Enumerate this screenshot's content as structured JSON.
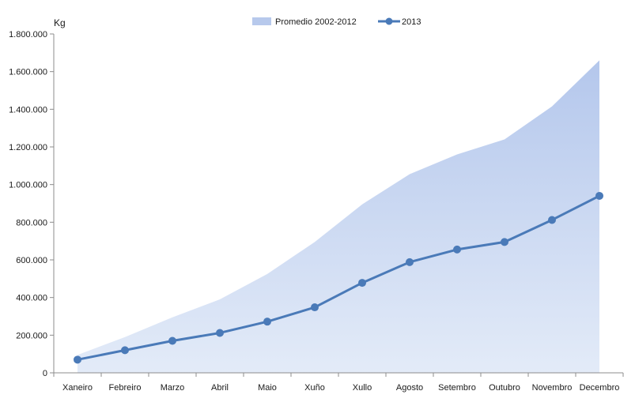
{
  "chart_data": {
    "type": "line",
    "unit_label": "Kg",
    "categories": [
      "Xaneiro",
      "Febreiro",
      "Marzo",
      "Abril",
      "Maio",
      "Xuño",
      "Xullo",
      "Agosto",
      "Setembro",
      "Outubro",
      "Novembro",
      "Decembro"
    ],
    "series": [
      {
        "name": "Promedio 2002-2012",
        "kind": "area",
        "color": "#b7c9ec",
        "values": [
          95000,
          190000,
          295000,
          390000,
          525000,
          695000,
          895000,
          1055000,
          1160000,
          1240000,
          1415000,
          1660000
        ]
      },
      {
        "name": "2013",
        "kind": "line",
        "color": "#4a7ab8",
        "values": [
          70000,
          120000,
          170000,
          212000,
          272000,
          348000,
          478000,
          588000,
          655000,
          695000,
          812000,
          940000
        ]
      }
    ],
    "ylim": [
      0,
      1800000
    ],
    "y_ticks": [
      0,
      200000,
      400000,
      600000,
      800000,
      1000000,
      1200000,
      1400000,
      1600000,
      1800000
    ],
    "y_tick_labels": [
      "0",
      "200.000",
      "400.000",
      "600.000",
      "800.000",
      "1.000.000",
      "1.200.000",
      "1.400.000",
      "1.600.000",
      "1.800.000"
    ],
    "grid": false,
    "legend_position": "top-center"
  }
}
